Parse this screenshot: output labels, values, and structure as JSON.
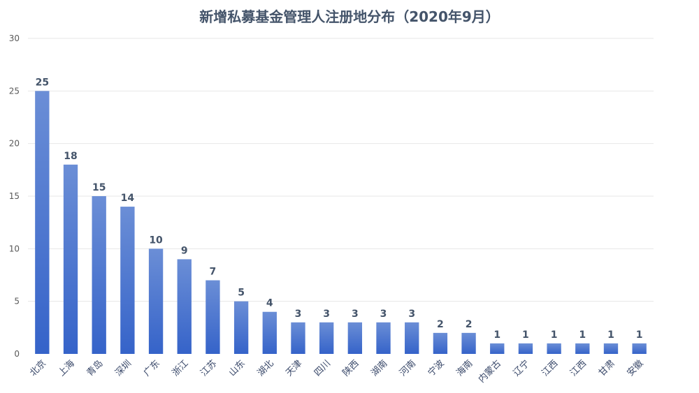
{
  "chart_data": {
    "type": "bar",
    "title": "新增私募基金管理人注册地分布（2020年9月）",
    "xlabel": "",
    "ylabel": "",
    "ylim": [
      0,
      30
    ],
    "yticks": [
      0,
      5,
      10,
      15,
      20,
      25,
      30
    ],
    "grid": true,
    "legend": "none",
    "categories": [
      "北京",
      "上海",
      "青岛",
      "深圳",
      "广东",
      "浙江",
      "江苏",
      "山东",
      "湖北",
      "天津",
      "四川",
      "陕西",
      "湖南",
      "河南",
      "宁波",
      "海南",
      "内蒙古",
      "辽宁",
      "江西",
      "江西",
      "甘肃",
      "安徽"
    ],
    "values": [
      25,
      18,
      15,
      14,
      10,
      9,
      7,
      5,
      4,
      3,
      3,
      3,
      3,
      3,
      2,
      2,
      1,
      1,
      1,
      1,
      1,
      1
    ],
    "bar_color_top": "#6b8ed6",
    "bar_color_bottom": "#3563c9",
    "label_color": "#44546a"
  }
}
